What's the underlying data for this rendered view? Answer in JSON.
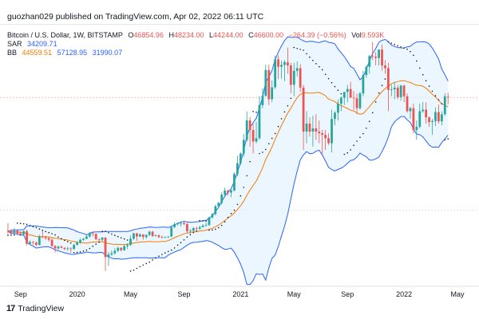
{
  "publisher": "guozhan029 published on TradingView.com, Apr 02, 2022 06:11 UTC",
  "legend": {
    "symbol": "Bitcoin / U.S. Dollar, 1W, BITSTAMP",
    "o_label": "O",
    "o": "46854.96",
    "h_label": "H",
    "h": "48234.00",
    "l_label": "L",
    "l": "44244.00",
    "c_label": "C",
    "c": "46600.00",
    "change": "−264.39 (−0.56%)",
    "vol_label": "Vol",
    "vol": "9.593K",
    "sar_label": "SAR",
    "sar": "34209.71",
    "bb_label": "BB",
    "bb_basis": "44559.51",
    "bb_upper": "57128.95",
    "bb_lower": "31990.07"
  },
  "footer": {
    "logo": "17",
    "brand": "TradingView"
  },
  "colors": {
    "up": "#26a69a",
    "down": "#ef5350",
    "basis": "#f57c00",
    "band": "#2962ff",
    "fill": "#e3f2fd",
    "sar": "#131722"
  },
  "chart_data": {
    "type": "candlestick",
    "x_tick_labels": [
      "Sep",
      "2020",
      "May",
      "Sep",
      "2021",
      "May",
      "Sep",
      "2022",
      "May"
    ],
    "x_start": "2019-08-05",
    "interval": "1W",
    "ylim": [
      2000,
      70000
    ],
    "ohlc": [
      [
        10400,
        11900,
        9500,
        10300
      ],
      [
        10300,
        10700,
        9700,
        10000
      ],
      [
        10000,
        10900,
        9800,
        10400
      ],
      [
        10400,
        10500,
        9600,
        9900
      ],
      [
        9900,
        10300,
        9400,
        9700
      ],
      [
        9700,
        10400,
        9400,
        10300
      ],
      [
        10300,
        10600,
        7700,
        8000
      ],
      [
        8000,
        8600,
        7800,
        8300
      ],
      [
        8300,
        8500,
        7800,
        8200
      ],
      [
        8200,
        8400,
        7600,
        7800
      ],
      [
        7800,
        9600,
        7700,
        9300
      ],
      [
        9300,
        10400,
        8900,
        9200
      ],
      [
        9200,
        9400,
        8700,
        9000
      ],
      [
        9000,
        9200,
        8400,
        8700
      ],
      [
        8700,
        9000,
        7400,
        7600
      ],
      [
        7600,
        7800,
        6500,
        7200
      ],
      [
        7200,
        7700,
        7000,
        7500
      ],
      [
        7500,
        7700,
        7200,
        7300
      ],
      [
        7300,
        7400,
        6900,
        7100
      ],
      [
        7100,
        7500,
        6800,
        7200
      ],
      [
        7200,
        7400,
        6500,
        7100
      ],
      [
        7100,
        8000,
        7000,
        7800
      ],
      [
        7800,
        8500,
        7700,
        8200
      ],
      [
        8200,
        8900,
        8000,
        8700
      ],
      [
        8700,
        9000,
        8500,
        8900
      ],
      [
        8900,
        9600,
        8800,
        9300
      ],
      [
        9300,
        10200,
        9100,
        9900
      ],
      [
        9900,
        10300,
        9300,
        9800
      ],
      [
        9800,
        9900,
        8700,
        8800
      ],
      [
        8800,
        9000,
        8500,
        8700
      ],
      [
        8700,
        9200,
        8400,
        9100
      ],
      [
        9100,
        9200,
        3800,
        5800
      ],
      [
        5800,
        6600,
        4500,
        6200
      ],
      [
        6200,
        6900,
        6000,
        6400
      ],
      [
        6400,
        7300,
        6200,
        6800
      ],
      [
        6800,
        7500,
        6600,
        7300
      ],
      [
        7300,
        7400,
        6700,
        6900
      ],
      [
        6900,
        7800,
        6800,
        7600
      ],
      [
        7600,
        8100,
        7100,
        7800
      ],
      [
        7800,
        9500,
        7600,
        8900
      ],
      [
        8900,
        10000,
        8700,
        9900
      ],
      [
        9900,
        10000,
        8500,
        9300
      ],
      [
        9300,
        9900,
        9200,
        9700
      ],
      [
        9700,
        9700,
        8700,
        9200
      ],
      [
        9200,
        9700,
        8900,
        9600
      ],
      [
        9600,
        10400,
        9400,
        10200
      ],
      [
        10200,
        10400,
        9200,
        9400
      ],
      [
        9400,
        9700,
        9300,
        9500
      ],
      [
        9500,
        9700,
        9000,
        9200
      ],
      [
        9200,
        9500,
        8900,
        9100
      ],
      [
        9100,
        9300,
        9000,
        9200
      ],
      [
        9200,
        9400,
        9000,
        9300
      ],
      [
        9300,
        11400,
        9200,
        11100
      ],
      [
        11100,
        12100,
        10900,
        11700
      ],
      [
        11700,
        12000,
        11400,
        11800
      ],
      [
        11800,
        12300,
        11200,
        11900
      ],
      [
        11900,
        12400,
        11500,
        11700
      ],
      [
        11700,
        12000,
        9900,
        10300
      ],
      [
        10300,
        10700,
        9900,
        10400
      ],
      [
        10400,
        11100,
        10200,
        10900
      ],
      [
        10900,
        11200,
        10400,
        10800
      ],
      [
        10800,
        11400,
        10500,
        11100
      ],
      [
        11100,
        11700,
        11000,
        11400
      ],
      [
        11400,
        12000,
        11200,
        11500
      ],
      [
        11500,
        13200,
        11400,
        13100
      ],
      [
        13100,
        14000,
        12800,
        13800
      ],
      [
        13800,
        15900,
        13500,
        15500
      ],
      [
        15500,
        16500,
        15200,
        16300
      ],
      [
        16300,
        18800,
        15900,
        18200
      ],
      [
        18200,
        19900,
        17600,
        19200
      ],
      [
        19200,
        19400,
        18000,
        18700
      ],
      [
        18700,
        19500,
        17600,
        19200
      ],
      [
        19200,
        23800,
        19000,
        23400
      ],
      [
        23400,
        28400,
        22800,
        26300
      ],
      [
        26300,
        29300,
        25800,
        29000
      ],
      [
        29000,
        34800,
        28200,
        33000
      ],
      [
        33000,
        41900,
        32500,
        39000
      ],
      [
        39000,
        40100,
        31000,
        36000
      ],
      [
        36000,
        38000,
        29000,
        32500
      ],
      [
        32500,
        38500,
        32000,
        33500
      ],
      [
        33500,
        47000,
        33000,
        44000
      ],
      [
        44000,
        49700,
        43000,
        47200
      ],
      [
        47200,
        58300,
        46800,
        56300
      ],
      [
        56300,
        58300,
        44000,
        46000
      ],
      [
        46000,
        52600,
        45000,
        50100
      ],
      [
        50100,
        61700,
        49500,
        60300
      ],
      [
        60300,
        61800,
        53000,
        57500
      ],
      [
        57500,
        59800,
        53200,
        58200
      ],
      [
        58200,
        60000,
        52300,
        59200
      ],
      [
        59200,
        64800,
        55000,
        58000
      ],
      [
        58000,
        59000,
        48000,
        51000
      ],
      [
        51000,
        59000,
        47000,
        56000
      ],
      [
        56000,
        59500,
        54000,
        57000
      ],
      [
        57000,
        58500,
        48500,
        50000
      ],
      [
        50000,
        51000,
        30000,
        35500
      ],
      [
        35500,
        42000,
        32000,
        38000
      ],
      [
        38000,
        40000,
        34000,
        35500
      ],
      [
        35500,
        40500,
        31000,
        36500
      ],
      [
        36500,
        41000,
        33000,
        35500
      ],
      [
        35500,
        39000,
        32000,
        35000
      ],
      [
        35000,
        36000,
        28800,
        34500
      ],
      [
        34500,
        36000,
        30000,
        33500
      ],
      [
        33500,
        35000,
        31500,
        32000
      ],
      [
        32000,
        42500,
        29300,
        39500
      ],
      [
        39500,
        42000,
        37500,
        41500
      ],
      [
        41500,
        46000,
        39000,
        44500
      ],
      [
        44500,
        47000,
        42000,
        46500
      ],
      [
        46500,
        48000,
        44000,
        48500
      ],
      [
        48500,
        51000,
        45000,
        49500
      ],
      [
        49500,
        52000,
        46500,
        46500
      ],
      [
        46500,
        48800,
        42500,
        46300
      ],
      [
        46300,
        48000,
        41000,
        43000
      ],
      [
        43000,
        48500,
        42500,
        48000
      ],
      [
        48000,
        56000,
        47000,
        54500
      ],
      [
        54500,
        58000,
        53500,
        57500
      ],
      [
        57500,
        62000,
        55000,
        61500
      ],
      [
        61500,
        67000,
        60000,
        61300
      ],
      [
        61300,
        63000,
        58000,
        60800
      ],
      [
        60800,
        64000,
        58000,
        64000
      ],
      [
        64000,
        66000,
        56000,
        58000
      ],
      [
        58000,
        60000,
        55000,
        57000
      ],
      [
        57000,
        59000,
        42000,
        49200
      ],
      [
        49200,
        51000,
        47000,
        49400
      ],
      [
        49400,
        52000,
        46000,
        50000
      ],
      [
        50000,
        51000,
        46000,
        46700
      ],
      [
        46700,
        51000,
        45500,
        50700
      ],
      [
        50700,
        51000,
        45000,
        47000
      ],
      [
        47000,
        48000,
        41500,
        42000
      ],
      [
        42000,
        43500,
        39500,
        43000
      ],
      [
        43000,
        44500,
        35000,
        36000
      ],
      [
        36000,
        39000,
        33000,
        37000
      ],
      [
        37000,
        44500,
        36500,
        42000
      ],
      [
        42000,
        45000,
        41500,
        42500
      ],
      [
        42500,
        45000,
        38000,
        40000
      ],
      [
        40000,
        40300,
        37000,
        38500
      ],
      [
        38500,
        39500,
        34500,
        38800
      ],
      [
        38800,
        43300,
        37200,
        41700
      ],
      [
        41700,
        44200,
        38000,
        38700
      ],
      [
        38700,
        42000,
        37500,
        41000
      ],
      [
        41000,
        48000,
        40500,
        47000
      ],
      [
        46854.96,
        48234,
        44244,
        46600
      ]
    ],
    "sar_last": 34209.71,
    "bb_last": {
      "basis": 44559.51,
      "upper": 57128.95,
      "lower": 31990.07
    }
  }
}
